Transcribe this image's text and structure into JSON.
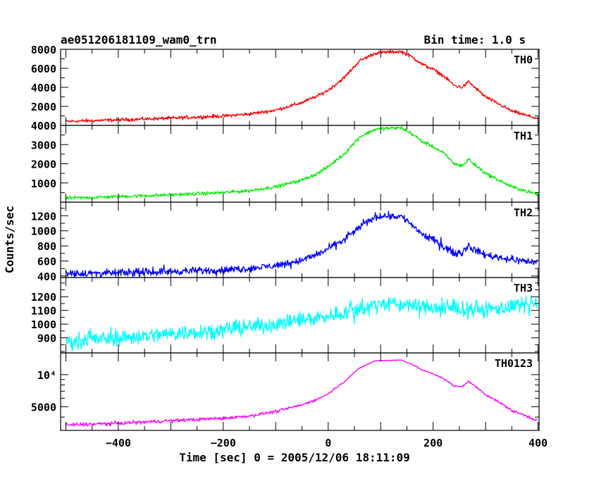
{
  "header": {
    "title": "ae051206181109_wam0_trn",
    "bin_time": "Bin time: 1.0 s"
  },
  "axes": {
    "xlabel": "Time [sec] 0 = 2005/12/06 18:11:09",
    "ylabel": "Counts/sec"
  },
  "chart_data": {
    "type": "line",
    "title": "ae051206181109_wam0_trn",
    "subtitle": "Bin time: 1.0 s",
    "xlabel": "Time [sec] 0 = 2005/12/06 18:11:09",
    "ylabel": "Counts/sec",
    "xlim": [
      -510,
      402
    ],
    "x_ticks": [
      -400,
      -200,
      0,
      200,
      400
    ],
    "x_tick_labels": [
      "−400",
      "−200",
      "0",
      "200",
      "400"
    ],
    "grid": false,
    "panels": [
      {
        "name": "TH0",
        "color": "#ff0000",
        "ylim": [
          0,
          8000
        ],
        "y_ticks": [
          2000,
          4000,
          6000,
          8000
        ],
        "y_tick_labels": [
          "2000",
          "4000",
          "6000",
          "8000"
        ],
        "noise": 90,
        "spikes": 0,
        "curve": [
          [
            -510,
            400
          ],
          [
            -400,
            580
          ],
          [
            -300,
            760
          ],
          [
            -200,
            980
          ],
          [
            -150,
            1200
          ],
          [
            -100,
            1600
          ],
          [
            -50,
            2400
          ],
          [
            -20,
            3100
          ],
          [
            0,
            3700
          ],
          [
            30,
            5000
          ],
          [
            60,
            6800
          ],
          [
            90,
            7600
          ],
          [
            110,
            7700
          ],
          [
            140,
            7750
          ],
          [
            160,
            7200
          ],
          [
            180,
            6400
          ],
          [
            200,
            5900
          ],
          [
            220,
            5200
          ],
          [
            240,
            4200
          ],
          [
            255,
            4000
          ],
          [
            262,
            4300
          ],
          [
            268,
            4600
          ],
          [
            275,
            4200
          ],
          [
            300,
            3000
          ],
          [
            350,
            1500
          ],
          [
            400,
            700
          ]
        ]
      },
      {
        "name": "TH1",
        "color": "#00ee00",
        "ylim": [
          0,
          4000
        ],
        "y_ticks": [
          1000,
          2000,
          3000,
          4000
        ],
        "y_tick_labels": [
          "1000",
          "2000",
          "3000",
          "4000"
        ],
        "noise": 45,
        "spikes": 0,
        "curve": [
          [
            -510,
            200
          ],
          [
            -400,
            290
          ],
          [
            -300,
            380
          ],
          [
            -200,
            500
          ],
          [
            -150,
            600
          ],
          [
            -100,
            800
          ],
          [
            -50,
            1150
          ],
          [
            -20,
            1500
          ],
          [
            0,
            1850
          ],
          [
            30,
            2500
          ],
          [
            60,
            3400
          ],
          [
            90,
            3800
          ],
          [
            110,
            3850
          ],
          [
            140,
            3870
          ],
          [
            160,
            3550
          ],
          [
            180,
            3150
          ],
          [
            200,
            2900
          ],
          [
            220,
            2550
          ],
          [
            240,
            2000
          ],
          [
            255,
            1900
          ],
          [
            262,
            2050
          ],
          [
            268,
            2250
          ],
          [
            275,
            2050
          ],
          [
            300,
            1500
          ],
          [
            350,
            800
          ],
          [
            400,
            400
          ]
        ]
      },
      {
        "name": "TH2",
        "color": "#0000ff",
        "ylim": [
          380,
          1380
        ],
        "y_ticks": [
          400,
          600,
          800,
          1000,
          1200
        ],
        "y_tick_labels": [
          "400",
          "600",
          "800",
          "1000",
          "1200"
        ],
        "noise": 24,
        "spikes": 60,
        "curve": [
          [
            -510,
            430
          ],
          [
            -400,
            440
          ],
          [
            -300,
            460
          ],
          [
            -200,
            480
          ],
          [
            -150,
            500
          ],
          [
            -100,
            540
          ],
          [
            -50,
            610
          ],
          [
            -20,
            690
          ],
          [
            0,
            760
          ],
          [
            30,
            880
          ],
          [
            60,
            1050
          ],
          [
            90,
            1190
          ],
          [
            110,
            1200
          ],
          [
            140,
            1190
          ],
          [
            160,
            1080
          ],
          [
            180,
            950
          ],
          [
            200,
            880
          ],
          [
            220,
            800
          ],
          [
            240,
            700
          ],
          [
            255,
            710
          ],
          [
            262,
            770
          ],
          [
            268,
            810
          ],
          [
            275,
            760
          ],
          [
            300,
            680
          ],
          [
            350,
            620
          ],
          [
            400,
            580
          ]
        ]
      },
      {
        "name": "TH3",
        "color": "#00ffff",
        "ylim": [
          790,
          1340
        ],
        "y_ticks": [
          900,
          1000,
          1100,
          1200
        ],
        "y_tick_labels": [
          "900",
          "1000",
          "1100",
          "1200"
        ],
        "noise": 28,
        "spikes": 70,
        "curve": [
          [
            -510,
            870
          ],
          [
            -400,
            900
          ],
          [
            -300,
            930
          ],
          [
            -200,
            960
          ],
          [
            -100,
            1000
          ],
          [
            0,
            1060
          ],
          [
            50,
            1100
          ],
          [
            100,
            1150
          ],
          [
            150,
            1140
          ],
          [
            200,
            1120
          ],
          [
            260,
            1110
          ],
          [
            300,
            1105
          ],
          [
            400,
            1145
          ]
        ]
      },
      {
        "name": "TH0123",
        "color": "#ff00ff",
        "log": true,
        "ylim": [
          3000,
          16000
        ],
        "y_ticks": [
          5000,
          10000
        ],
        "y_tick_labels": [
          "5000",
          "10⁴"
        ],
        "minor_ticks": [
          3000,
          4000,
          6000,
          7000,
          8000,
          9000
        ],
        "noise": 70,
        "spikes": 0,
        "curve": [
          [
            -510,
            3350
          ],
          [
            -400,
            3500
          ],
          [
            -300,
            3700
          ],
          [
            -200,
            3900
          ],
          [
            -150,
            4100
          ],
          [
            -100,
            4500
          ],
          [
            -50,
            5200
          ],
          [
            -20,
            5900
          ],
          [
            0,
            6600
          ],
          [
            30,
            8500
          ],
          [
            60,
            11500
          ],
          [
            90,
            13500
          ],
          [
            110,
            13600
          ],
          [
            140,
            13700
          ],
          [
            160,
            12500
          ],
          [
            180,
            11000
          ],
          [
            200,
            10200
          ],
          [
            220,
            9200
          ],
          [
            240,
            7800
          ],
          [
            255,
            7700
          ],
          [
            262,
            8300
          ],
          [
            268,
            8700
          ],
          [
            275,
            8100
          ],
          [
            300,
            6500
          ],
          [
            350,
            4600
          ],
          [
            400,
            3700
          ]
        ]
      }
    ]
  }
}
